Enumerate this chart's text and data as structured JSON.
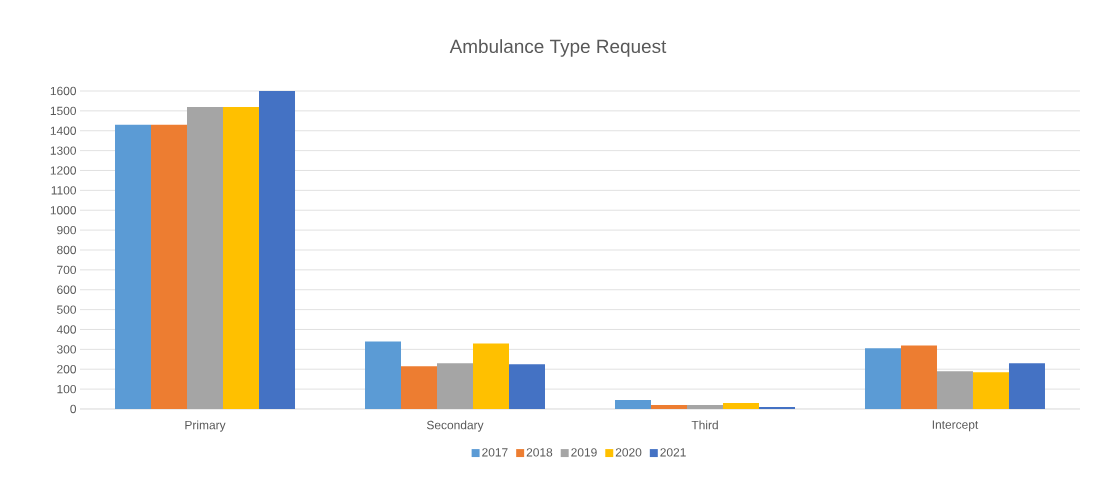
{
  "chart_data": {
    "type": "bar",
    "title": "Ambulance Type Request",
    "categories": [
      "Primary",
      "Secondary",
      "Third",
      "Intercept"
    ],
    "series": [
      {
        "name": "2017",
        "color": "#5b9bd5",
        "values": [
          1430,
          340,
          45,
          305
        ]
      },
      {
        "name": "2018",
        "color": "#ed7d31",
        "values": [
          1430,
          215,
          20,
          320
        ]
      },
      {
        "name": "2019",
        "color": "#a5a5a5",
        "values": [
          1520,
          230,
          20,
          190
        ]
      },
      {
        "name": "2020",
        "color": "#ffc000",
        "values": [
          1520,
          330,
          30,
          185
        ]
      },
      {
        "name": "2021",
        "color": "#4472c4",
        "values": [
          1600,
          225,
          10,
          230
        ]
      }
    ],
    "ylim": [
      0,
      1600
    ],
    "yticks": [
      0,
      100,
      200,
      300,
      400,
      500,
      600,
      700,
      800,
      900,
      1000,
      1100,
      1200,
      1300,
      1400,
      1500,
      1600
    ],
    "grid": "y",
    "legend": "bottom"
  }
}
